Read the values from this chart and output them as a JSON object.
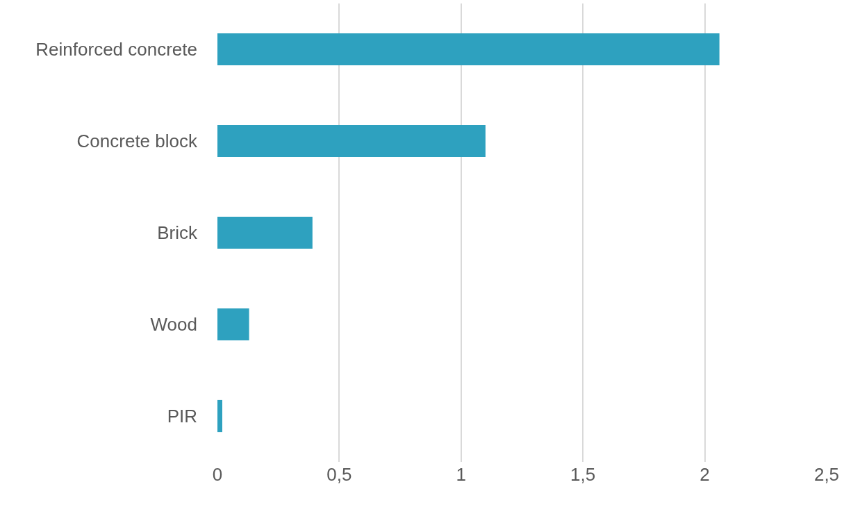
{
  "chart_data": {
    "type": "bar",
    "orientation": "horizontal",
    "categories": [
      "Reinforced concrete",
      "Concrete block",
      "Brick",
      "Wood",
      "PIR"
    ],
    "values": [
      2.06,
      1.1,
      0.39,
      0.13,
      0.02
    ],
    "color": "#2ea1bf",
    "xlim": [
      0,
      2.5
    ],
    "xticks": [
      0,
      {
        "value": 0.5,
        "label": "0,5"
      },
      1,
      {
        "value": 1.5,
        "label": "1,5"
      },
      2,
      {
        "value": 2.5,
        "label": "2,5"
      }
    ],
    "grid": "x",
    "legend": false
  }
}
